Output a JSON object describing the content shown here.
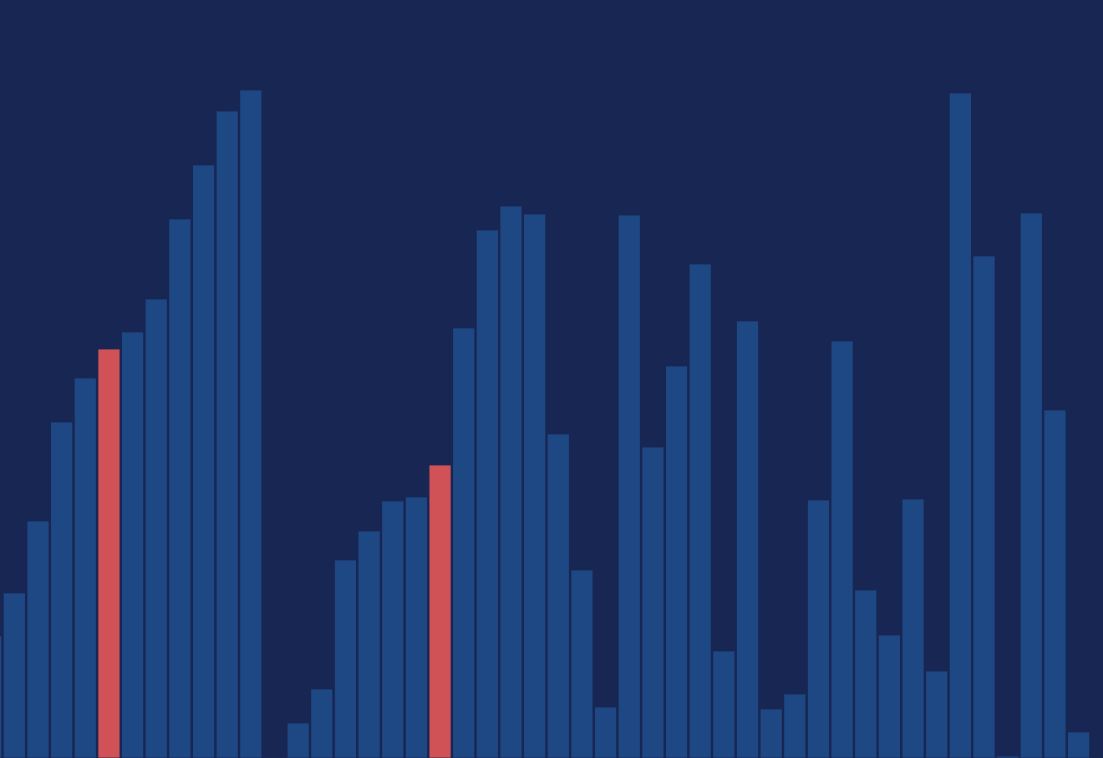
{
  "colors": {
    "background": "#182654",
    "bar": "#1e4884",
    "highlight": "#d05257",
    "bar_edge": "#182654"
  },
  "chart_data": {
    "type": "bar",
    "title": "",
    "xlabel": "",
    "ylabel": "",
    "ylim": [
      0,
      758
    ],
    "grid": false,
    "legend": "none",
    "highlight_indices": [
      5,
      19
    ],
    "values": [
      122,
      165,
      237,
      336,
      380,
      409,
      426,
      459,
      539,
      593,
      647,
      668,
      0,
      35,
      69,
      198,
      227,
      257,
      261,
      293,
      430,
      528,
      552,
      544,
      324,
      188,
      51,
      543,
      311,
      392,
      494,
      107,
      437,
      49,
      64,
      258,
      417,
      168,
      123,
      259,
      87,
      665,
      502,
      2,
      545,
      348,
      26
    ]
  }
}
